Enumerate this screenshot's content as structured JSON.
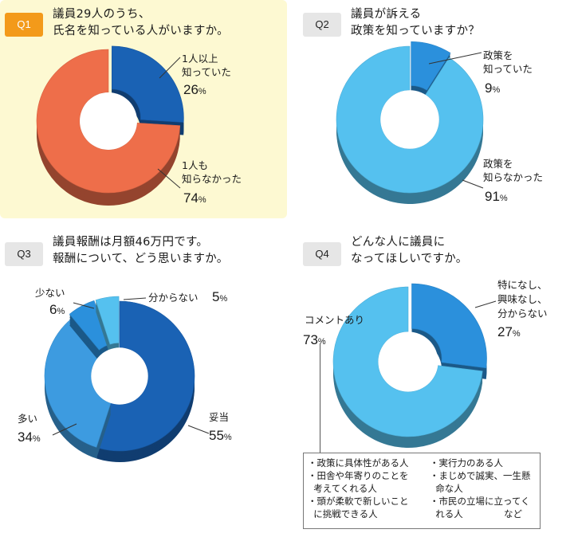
{
  "questions": [
    {
      "badge": "Q1",
      "title_lines": [
        "議員29人のうち、",
        "氏名を知っている人がいますか。"
      ],
      "labels": [
        {
          "lines": [
            "1人以上",
            "知っていた"
          ],
          "pct": "26"
        },
        {
          "lines": [
            "1人も",
            "知らなかった"
          ],
          "pct": "74"
        }
      ]
    },
    {
      "badge": "Q2",
      "title_lines": [
        "議員が訴える",
        "政策を知っていますか？"
      ],
      "labels": [
        {
          "lines": [
            "政策を",
            "知っていた"
          ],
          "pct": "9"
        },
        {
          "lines": [
            "政策を",
            "知らなかった"
          ],
          "pct": "91"
        }
      ]
    },
    {
      "badge": "Q3",
      "title_lines": [
        "議員報酬は月額46万円です。",
        "報酬について、どう思いますか。"
      ],
      "labels": [
        {
          "lines": [
            "妥当"
          ],
          "pct": "55"
        },
        {
          "lines": [
            "多い"
          ],
          "pct": "34"
        },
        {
          "lines": [
            "少ない"
          ],
          "pct": "6"
        },
        {
          "lines": [
            "分からない"
          ],
          "pct": "5"
        }
      ]
    },
    {
      "badge": "Q4",
      "title_lines": [
        "どんな人に議員に",
        "なってほしいですか。"
      ],
      "labels": [
        {
          "lines": [
            "特になし、",
            "興味なし、",
            "分からない"
          ],
          "pct": "27"
        },
        {
          "lines": [
            "コメントあり"
          ],
          "pct": "73"
        }
      ]
    }
  ],
  "pct_unit": "%",
  "comment_box": {
    "left": [
      "・政策に具体性がある人",
      "・田舎や年寄りのことを",
      "  考えてくれる人",
      "・頭が柔軟で新しいこと",
      "  に挑戦できる人"
    ],
    "right": [
      "・実行力のある人",
      "・まじめで誠実、一生懸",
      "  命な人",
      "・市民の立場に立ってく",
      "  れる人              など"
    ]
  },
  "colors": {
    "dark_blue": "#1a62b4",
    "mid_blue": "#3d9be0",
    "light_blue": "#55c1ef",
    "cyan_blue": "#2b90dc",
    "orange": "#ee6e4a",
    "badge_orange": "#f39a1a",
    "q1_background": "#fdf9d2"
  },
  "chart_data": [
    {
      "type": "pie",
      "title": "議員29人のうち、氏名を知っている人がいますか。",
      "categories": [
        "1人以上知っていた",
        "1人も知らなかった"
      ],
      "values": [
        26,
        74
      ],
      "unit": "%",
      "colors": [
        "#1a62b4",
        "#ee6e4a"
      ]
    },
    {
      "type": "pie",
      "title": "議員が訴える政策を知っていますか？",
      "categories": [
        "政策を知っていた",
        "政策を知らなかった"
      ],
      "values": [
        9,
        91
      ],
      "unit": "%",
      "colors": [
        "#2b90dc",
        "#55c1ef"
      ]
    },
    {
      "type": "pie",
      "title": "議員報酬は月額46万円です。報酬について、どう思いますか。",
      "categories": [
        "妥当",
        "多い",
        "少ない",
        "分からない"
      ],
      "values": [
        55,
        34,
        6,
        5
      ],
      "unit": "%",
      "colors": [
        "#1a62b4",
        "#3d9be0",
        "#2b90dc",
        "#55c1ef"
      ]
    },
    {
      "type": "pie",
      "title": "どんな人に議員になってほしいですか。",
      "categories": [
        "特になし、興味なし、分からない",
        "コメントあり"
      ],
      "values": [
        27,
        73
      ],
      "unit": "%",
      "colors": [
        "#2b90dc",
        "#55c1ef"
      ]
    }
  ]
}
